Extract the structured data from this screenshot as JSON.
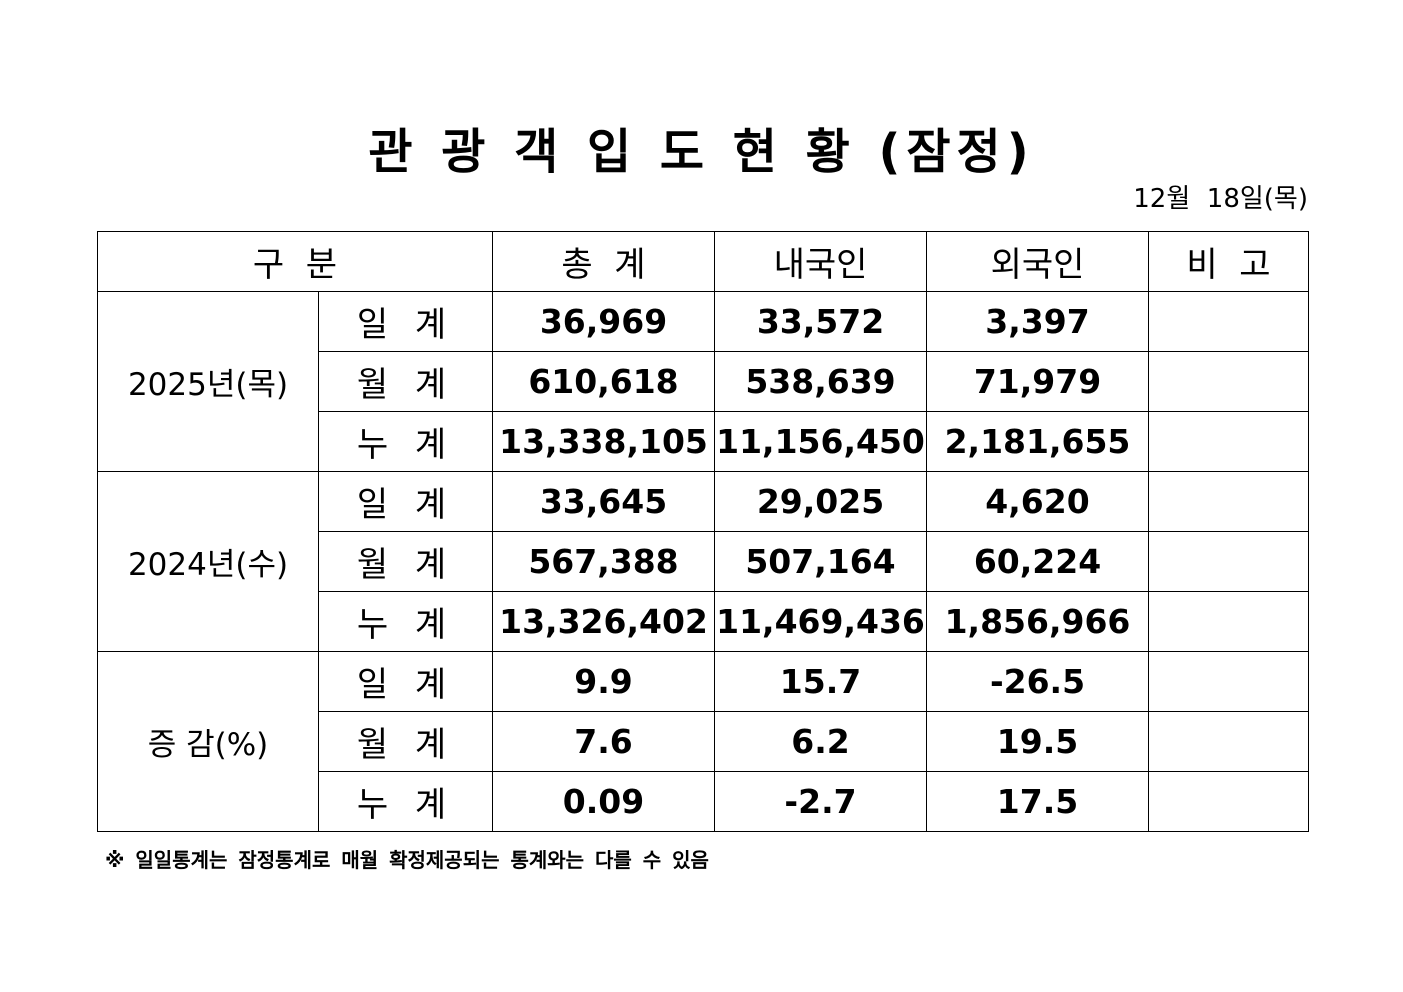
{
  "header": {
    "title": "관 광 객 입 도 현 황 (잠정)",
    "date": "12월  18일(목)"
  },
  "table": {
    "columns": [
      "구  분",
      "총  계",
      "내국인",
      "외국인",
      "비  고"
    ],
    "groups": [
      {
        "label": "2025년(목)",
        "rows": [
          {
            "label": "일 계",
            "values": [
              "36,969",
              "33,572",
              "3,397"
            ]
          },
          {
            "label": "월 계",
            "values": [
              "610,618",
              "538,639",
              "71,979"
            ]
          },
          {
            "label": "누 계",
            "values": [
              "13,338,105",
              "11,156,450",
              "2,181,655"
            ]
          }
        ]
      },
      {
        "label": "2024년(수)",
        "rows": [
          {
            "label": "일 계",
            "values": [
              "33,645",
              "29,025",
              "4,620"
            ]
          },
          {
            "label": "월 계",
            "values": [
              "567,388",
              "507,164",
              "60,224"
            ]
          },
          {
            "label": "누 계",
            "values": [
              "13,326,402",
              "11,469,436",
              "1,856,966"
            ]
          }
        ]
      },
      {
        "label": "증 감(%)",
        "rows": [
          {
            "label": "일 계",
            "values": [
              "9.9",
              "15.7",
              "-26.5"
            ]
          },
          {
            "label": "월 계",
            "values": [
              "7.6",
              "6.2",
              "19.5"
            ]
          },
          {
            "label": "누 계",
            "values": [
              "0.09",
              "-2.7",
              "17.5"
            ]
          }
        ]
      }
    ]
  },
  "footnote": "※ 일일통계는 잠정통계로 매월 확정제공되는 통계와는 다를 수 있음"
}
